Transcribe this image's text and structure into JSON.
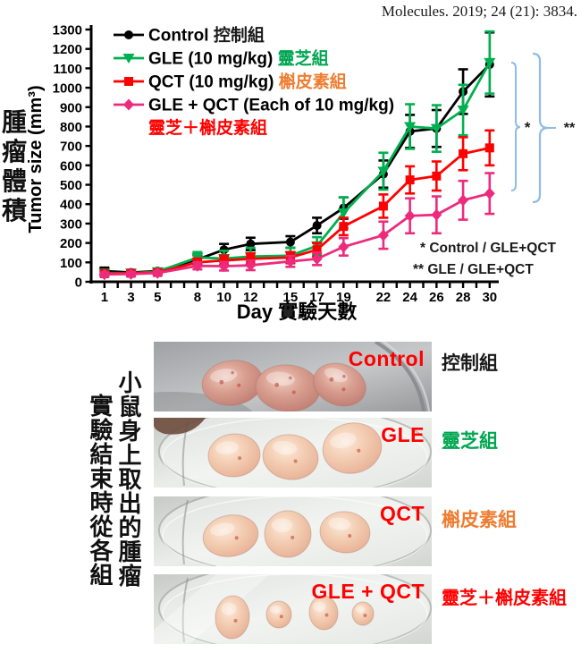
{
  "citation": "Molecules. 2019; 24 (21): 3834.",
  "chart_data": {
    "type": "line",
    "xlabel_en": "Day",
    "xlabel_zh": "實驗天數",
    "ylabel_en": "Tumor size (mm³)",
    "ylabel_zh": "腫瘤體積",
    "x": [
      1,
      3,
      5,
      8,
      10,
      12,
      15,
      17,
      19,
      22,
      24,
      26,
      28,
      30
    ],
    "xlim": [
      0,
      31
    ],
    "ylim": [
      0,
      1300
    ],
    "ytick_step": 100,
    "grid": false,
    "legend_position": "top-left-inside",
    "series": [
      {
        "label_en": "Control ",
        "label_zh": "控制組",
        "zh_color": "#1a1a1a",
        "color": "#000000",
        "marker": "circle",
        "values": [
          55,
          48,
          55,
          115,
          165,
          195,
          205,
          290,
          380,
          555,
          775,
          790,
          980,
          1120
        ],
        "errors": [
          18,
          10,
          12,
          22,
          30,
          32,
          30,
          40,
          55,
          70,
          85,
          95,
          115,
          165
        ]
      },
      {
        "label_en": "GLE (10 mg/kg)",
        "label_zh": "靈芝組",
        "zh_color": "#00A651",
        "color": "#00B050",
        "marker": "triangle-down",
        "values": [
          45,
          45,
          52,
          125,
          120,
          130,
          135,
          185,
          355,
          570,
          800,
          790,
          885,
          1130
        ],
        "errors": [
          12,
          10,
          12,
          28,
          40,
          45,
          40,
          45,
          80,
          95,
          115,
          120,
          130,
          160
        ]
      },
      {
        "label_en": "QCT (10 mg/kg)",
        "label_zh": "槲皮素組",
        "zh_color": "#ED7D31",
        "color": "#FF0000",
        "marker": "square",
        "values": [
          42,
          44,
          48,
          100,
          110,
          118,
          125,
          165,
          285,
          390,
          525,
          545,
          660,
          690
        ],
        "errors": [
          10,
          10,
          10,
          20,
          25,
          28,
          28,
          35,
          45,
          60,
          70,
          75,
          85,
          90
        ]
      },
      {
        "label_en": "GLE + QCT (Each of 10 mg/kg)",
        "label_zh": "靈芝＋槲皮素組",
        "zh_color": "#FF0000",
        "color": "#EC2B7C",
        "marker": "diamond",
        "values": [
          38,
          40,
          45,
          82,
          80,
          85,
          105,
          118,
          180,
          240,
          340,
          345,
          420,
          455
        ],
        "errors": [
          10,
          10,
          10,
          18,
          22,
          25,
          28,
          32,
          45,
          70,
          90,
          95,
          100,
          105
        ]
      }
    ],
    "annotations": [
      {
        "symbol": "*",
        "text": "Control / GLE+QCT"
      },
      {
        "symbol": "**",
        "text": "GLE / GLE+QCT"
      }
    ],
    "brace_color": "#8FBCE6"
  },
  "photos": {
    "side_title_col_right": "小鼠身上取出的腫瘤",
    "side_title_col_left": "實驗結束時從各組",
    "overlay_color": "#FF0000",
    "groups": [
      {
        "overlay_label": "Control",
        "zh_label": "控制組",
        "zh_color": "#1a1a1a",
        "tumor_count": 3
      },
      {
        "overlay_label": "GLE",
        "zh_label": "靈芝組",
        "zh_color": "#00A651",
        "tumor_count": 3
      },
      {
        "overlay_label": "QCT",
        "zh_label": "槲皮素組",
        "zh_color": "#ED7D31",
        "tumor_count": 3
      },
      {
        "overlay_label": "GLE + QCT",
        "zh_label": "靈芝＋槲皮素組",
        "zh_color": "#FF0000",
        "tumor_count": 4
      }
    ]
  }
}
